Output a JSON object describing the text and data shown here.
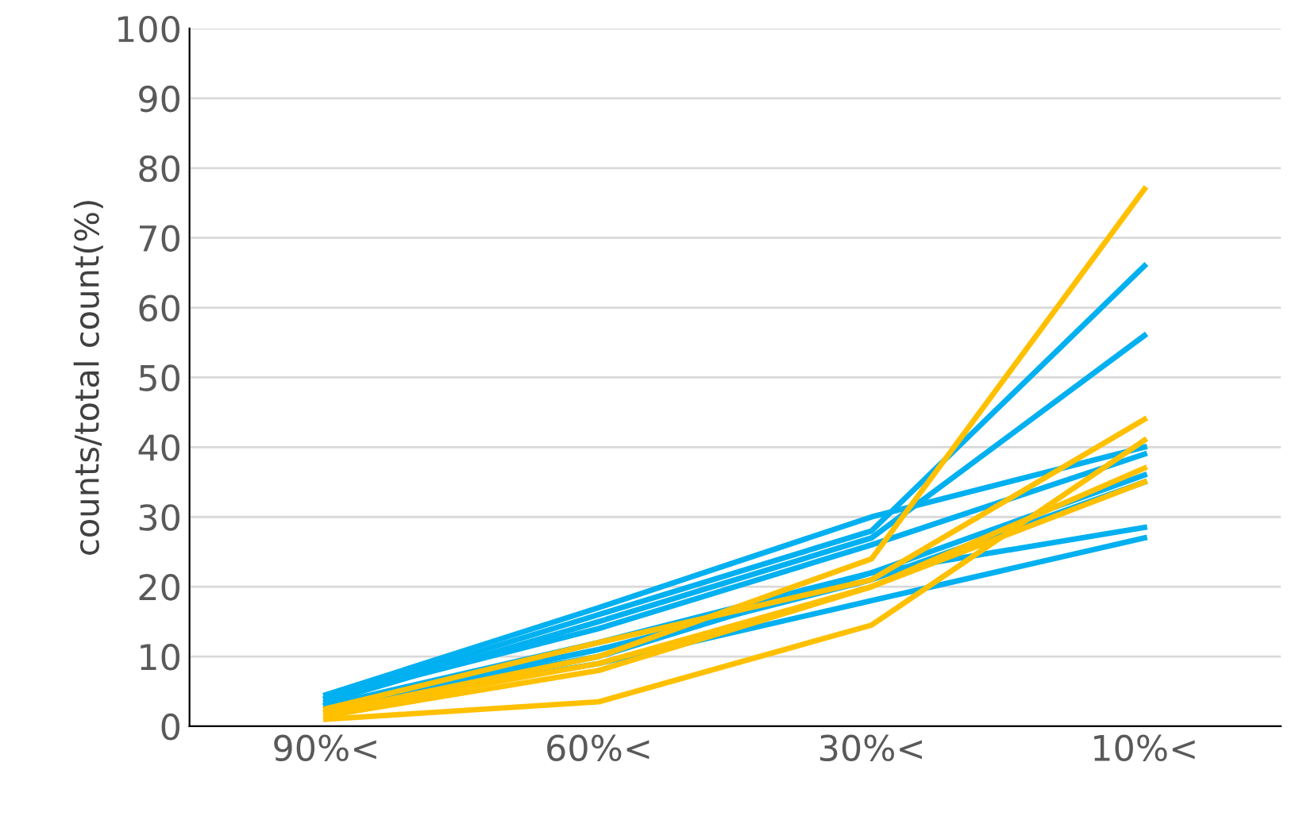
{
  "chart_data": {
    "type": "line",
    "ylabel": "counts/total count(%)",
    "categories": [
      "90%<",
      "60%<",
      "30%<",
      "10%<"
    ],
    "ylim": [
      0,
      100
    ],
    "yticks": [
      0,
      10,
      20,
      30,
      40,
      50,
      60,
      70,
      80,
      90,
      100
    ],
    "grid": "y",
    "legend": false,
    "series": [
      {
        "color": "#00b0f0",
        "values": [
          4.5,
          17,
          30,
          40
        ]
      },
      {
        "color": "#00b0f0",
        "values": [
          4,
          16,
          28,
          66
        ]
      },
      {
        "color": "#00b0f0",
        "values": [
          3.5,
          15,
          27,
          56
        ]
      },
      {
        "color": "#00b0f0",
        "values": [
          4,
          14,
          26,
          39
        ]
      },
      {
        "color": "#00b0f0",
        "values": [
          3,
          12,
          22,
          36
        ]
      },
      {
        "color": "#00b0f0",
        "values": [
          3,
          11,
          21,
          35
        ]
      },
      {
        "color": "#00b0f0",
        "values": [
          3,
          10,
          22,
          28.5
        ]
      },
      {
        "color": "#00b0f0",
        "values": [
          2.5,
          9,
          18,
          27
        ]
      },
      {
        "color": "#ffc000",
        "values": [
          2,
          10,
          24,
          77
        ]
      },
      {
        "color": "#ffc000",
        "values": [
          1,
          3.5,
          14.5,
          41
        ]
      },
      {
        "color": "#ffc000",
        "values": [
          2.5,
          12,
          21,
          44
        ]
      },
      {
        "color": "#ffc000",
        "values": [
          2,
          9,
          20,
          37
        ]
      },
      {
        "color": "#ffc000",
        "values": [
          1.5,
          8,
          20,
          35
        ]
      }
    ]
  }
}
